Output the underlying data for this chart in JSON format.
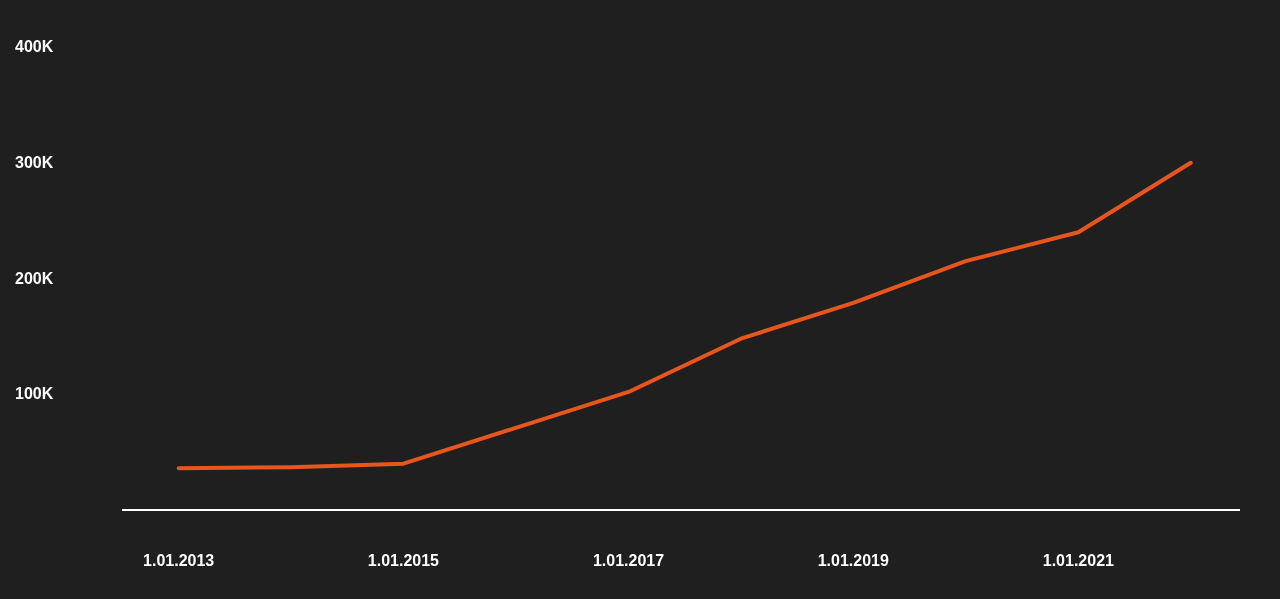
{
  "chart_data": {
    "type": "line",
    "x": [
      "2013-01-01",
      "2014-01-01",
      "2015-01-01",
      "2016-01-01",
      "2017-01-01",
      "2018-01-01",
      "2019-01-01",
      "2020-01-01",
      "2021-01-01",
      "2022-01-01"
    ],
    "values": [
      36000,
      37000,
      40000,
      71000,
      102000,
      148000,
      179000,
      215000,
      240000,
      300000
    ],
    "color": "#e8561c",
    "xlim": [
      "2012-07-01",
      "2022-06-10"
    ],
    "xticks": [
      {
        "value": "2013-01-01",
        "label": "1.01.2013"
      },
      {
        "value": "2015-01-01",
        "label": "1.01.2015"
      },
      {
        "value": "2017-01-01",
        "label": "1.01.2017"
      },
      {
        "value": "2019-01-01",
        "label": "1.01.2019"
      },
      {
        "value": "2021-01-01",
        "label": "1.01.2021"
      }
    ],
    "ylim": [
      0,
      400000
    ],
    "yticks": [
      {
        "value": 100000,
        "label": "100K"
      },
      {
        "value": 200000,
        "label": "200K"
      },
      {
        "value": 300000,
        "label": "300K"
      },
      {
        "value": 400000,
        "label": "400K"
      }
    ],
    "marker": "none"
  }
}
